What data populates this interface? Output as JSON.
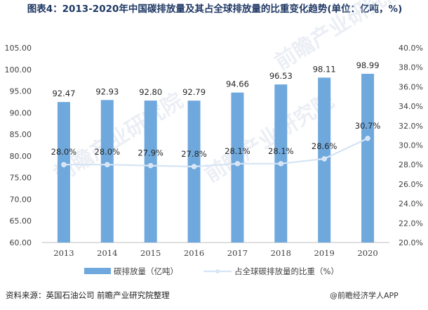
{
  "chart_data": {
    "type": "bar",
    "title": "图表4：2013-2020年中国碳排放量及其占全球排放量的比重变化趋势(单位：亿吨，%)",
    "categories": [
      "2013",
      "2014",
      "2015",
      "2016",
      "2017",
      "2018",
      "2019",
      "2020"
    ],
    "series": [
      {
        "name": "碳排放量（亿吨）",
        "type": "bar",
        "axis": "left",
        "values": [
          92.47,
          92.93,
          92.8,
          92.79,
          94.66,
          96.53,
          98.11,
          98.99
        ],
        "labels": [
          "92.47",
          "92.93",
          "92.80",
          "92.79",
          "94.66",
          "96.53",
          "98.11",
          "98.99"
        ],
        "color": "#6fa8dc"
      },
      {
        "name": "占全球碳排放量的比重（%）",
        "type": "line",
        "axis": "right",
        "values": [
          28.0,
          28.0,
          27.9,
          27.8,
          28.1,
          28.1,
          28.6,
          30.7
        ],
        "labels": [
          "28.0%",
          "28.0%",
          "27.9%",
          "27.8%",
          "28.1%",
          "28.1%",
          "28.6%",
          "30.7%"
        ],
        "color": "#d6e4f5"
      }
    ],
    "ylim_left": [
      60,
      105
    ],
    "ylim_right": [
      20,
      40
    ],
    "yticks_left": [
      "105.00",
      "100.00",
      "95.00",
      "90.00",
      "85.00",
      "80.00",
      "75.00",
      "70.00",
      "65.00",
      "60.00"
    ],
    "yticks_right": [
      "40.0%",
      "38.0%",
      "36.0%",
      "34.0%",
      "32.0%",
      "30.0%",
      "28.0%",
      "26.0%",
      "24.0%",
      "22.0%",
      "20.0%"
    ],
    "grid": false,
    "legend_position": "bottom"
  },
  "source": "资料来源：英国石油公司 前瞻产业研究院整理",
  "watermark_brand": "@前瞻经济学人APP",
  "watermark_text": "前瞻产业研究院"
}
